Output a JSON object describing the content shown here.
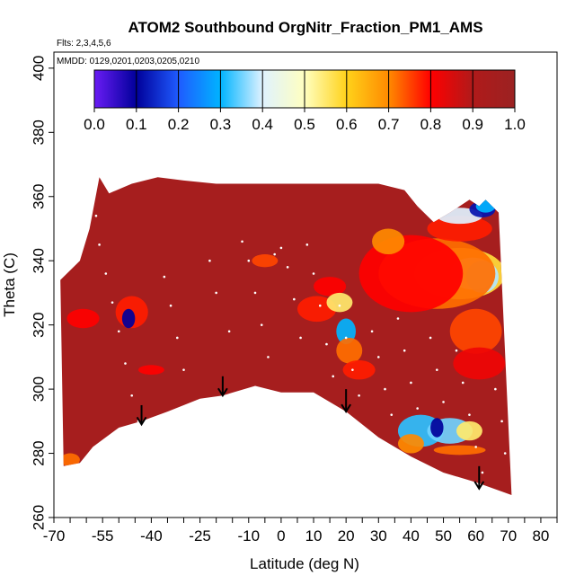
{
  "chart_data": {
    "type": "heatmap",
    "title": "ATOM2 Southbound OrgNitr_Fraction_PM1_AMS",
    "flights_label": "Flts: 2,3,4,5,6",
    "dates_label": "MMDD: 0129,0201,0203,0205,0210",
    "xlabel": "Latitude (deg N)",
    "ylabel": "Theta (C)",
    "xlim": [
      -70,
      85
    ],
    "ylim": [
      260,
      405
    ],
    "x_ticks": [
      {
        "value": -70,
        "label": "-70"
      },
      {
        "value": -55,
        "label": "-55"
      },
      {
        "value": -40,
        "label": "-40"
      },
      {
        "value": -25,
        "label": "-25"
      },
      {
        "value": -10,
        "label": "-10"
      },
      {
        "value": 0,
        "label": "0"
      },
      {
        "value": 10,
        "label": "10"
      },
      {
        "value": 20,
        "label": "20"
      },
      {
        "value": 30,
        "label": "30"
      },
      {
        "value": 40,
        "label": "40"
      },
      {
        "value": 50,
        "label": "50"
      },
      {
        "value": 60,
        "label": "60"
      },
      {
        "value": 70,
        "label": "70"
      },
      {
        "value": 80,
        "label": "80"
      }
    ],
    "y_ticks": [
      {
        "value": 260,
        "label": "260"
      },
      {
        "value": 280,
        "label": "280"
      },
      {
        "value": 300,
        "label": "300"
      },
      {
        "value": 320,
        "label": "320"
      },
      {
        "value": 340,
        "label": "340"
      },
      {
        "value": 360,
        "label": "360"
      },
      {
        "value": 380,
        "label": "380"
      },
      {
        "value": 400,
        "label": "400"
      }
    ],
    "colorbar": {
      "range": [
        0.0,
        1.0
      ],
      "ticks": [
        "0.0",
        "0.1",
        "0.2",
        "0.3",
        "0.4",
        "0.5",
        "0.6",
        "0.7",
        "0.8",
        "0.9",
        "1.0"
      ],
      "stops": [
        "#6a1cf5",
        "#00009a",
        "#1f5bff",
        "#00b4ff",
        "#dff2ff",
        "#ffffc0",
        "#ffd21a",
        "#ff8a00",
        "#ff0000",
        "#b01a1a",
        "#9b2222"
      ]
    },
    "background_value": 0.95,
    "domain_top": [
      {
        "lat": -68,
        "theta": 334
      },
      {
        "lat": -62,
        "theta": 340
      },
      {
        "lat": -59,
        "theta": 350
      },
      {
        "lat": -56,
        "theta": 366
      },
      {
        "lat": -53,
        "theta": 361
      },
      {
        "lat": -46,
        "theta": 364
      },
      {
        "lat": -38,
        "theta": 366
      },
      {
        "lat": -30,
        "theta": 365
      },
      {
        "lat": -20,
        "theta": 364
      },
      {
        "lat": -5,
        "theta": 364
      },
      {
        "lat": 15,
        "theta": 364
      },
      {
        "lat": 30,
        "theta": 364
      },
      {
        "lat": 38,
        "theta": 362
      },
      {
        "lat": 42,
        "theta": 357
      },
      {
        "lat": 47,
        "theta": 352
      },
      {
        "lat": 52,
        "theta": 355
      },
      {
        "lat": 58,
        "theta": 359
      },
      {
        "lat": 61,
        "theta": 357
      },
      {
        "lat": 63,
        "theta": 359
      },
      {
        "lat": 65,
        "theta": 357
      },
      {
        "lat": 67,
        "theta": 355
      }
    ],
    "domain_bottom": [
      {
        "lat": -67,
        "theta": 276
      },
      {
        "lat": -62,
        "theta": 277
      },
      {
        "lat": -58,
        "theta": 282
      },
      {
        "lat": -50,
        "theta": 288
      },
      {
        "lat": -43,
        "theta": 290
      },
      {
        "lat": -35,
        "theta": 293
      },
      {
        "lat": -25,
        "theta": 297
      },
      {
        "lat": -18,
        "theta": 298
      },
      {
        "lat": -8,
        "theta": 301
      },
      {
        "lat": 0,
        "theta": 299
      },
      {
        "lat": 10,
        "theta": 299
      },
      {
        "lat": 20,
        "theta": 293
      },
      {
        "lat": 30,
        "theta": 285
      },
      {
        "lat": 40,
        "theta": 279
      },
      {
        "lat": 50,
        "theta": 274
      },
      {
        "lat": 60,
        "theta": 271
      },
      {
        "lat": 71,
        "theta": 267
      }
    ],
    "patches": [
      {
        "lat": 55,
        "theta": 336,
        "rlat": 14,
        "rtheta": 8,
        "value": 0.58
      },
      {
        "lat": 59,
        "theta": 336,
        "rlat": 7,
        "rtheta": 5,
        "value": 0.46
      },
      {
        "lat": 62,
        "theta": 335,
        "rlat": 5,
        "rtheta": 5,
        "value": 0.38
      },
      {
        "lat": 48,
        "theta": 336,
        "rlat": 18,
        "rtheta": 11,
        "value": 0.72
      },
      {
        "lat": 40,
        "theta": 336,
        "rlat": 16,
        "rtheta": 12,
        "value": 0.8
      },
      {
        "lat": 60,
        "theta": 318,
        "rlat": 8,
        "rtheta": 7,
        "value": 0.75
      },
      {
        "lat": 61,
        "theta": 308,
        "rlat": 8,
        "rtheta": 5,
        "value": 0.82
      },
      {
        "lat": 55,
        "theta": 350,
        "rlat": 10,
        "rtheta": 4,
        "value": 0.78
      },
      {
        "lat": 55,
        "theta": 354,
        "rlat": 7,
        "rtheta": 2.5,
        "value": 0.4
      },
      {
        "lat": 62,
        "theta": 356,
        "rlat": 4,
        "rtheta": 2.5,
        "value": 0.12
      },
      {
        "lat": 43,
        "theta": 287,
        "rlat": 7,
        "rtheta": 5,
        "value": 0.32
      },
      {
        "lat": 52,
        "theta": 287,
        "rlat": 7,
        "rtheta": 4,
        "value": 0.35
      },
      {
        "lat": 58,
        "theta": 287,
        "rlat": 4,
        "rtheta": 3,
        "value": 0.55
      },
      {
        "lat": 48,
        "theta": 288,
        "rlat": 2,
        "rtheta": 3,
        "value": 0.1
      },
      {
        "lat": 55,
        "theta": 281,
        "rlat": 8,
        "rtheta": 1.5,
        "value": 0.72
      },
      {
        "lat": 40,
        "theta": 283,
        "rlat": 4,
        "rtheta": 3,
        "value": 0.7
      },
      {
        "lat": 20,
        "theta": 318,
        "rlat": 3,
        "rtheta": 4,
        "value": 0.3
      },
      {
        "lat": 21,
        "theta": 312,
        "rlat": 4,
        "rtheta": 4,
        "value": 0.72
      },
      {
        "lat": 24,
        "theta": 306,
        "rlat": 5,
        "rtheta": 3,
        "value": 0.78
      },
      {
        "lat": 15,
        "theta": 332,
        "rlat": 5,
        "rtheta": 3,
        "value": 0.8
      },
      {
        "lat": 11,
        "theta": 325,
        "rlat": 6,
        "rtheta": 4,
        "value": 0.78
      },
      {
        "lat": -5,
        "theta": 340,
        "rlat": 4,
        "rtheta": 2,
        "value": 0.75
      },
      {
        "lat": -46,
        "theta": 324,
        "rlat": 5,
        "rtheta": 5,
        "value": 0.78
      },
      {
        "lat": -61,
        "theta": 322,
        "rlat": 5,
        "rtheta": 3,
        "value": 0.8
      },
      {
        "lat": -47,
        "theta": 322,
        "rlat": 2,
        "rtheta": 3,
        "value": 0.1
      },
      {
        "lat": -40,
        "theta": 306,
        "rlat": 4,
        "rtheta": 1.5,
        "value": 0.8
      },
      {
        "lat": -65,
        "theta": 278,
        "rlat": 3,
        "rtheta": 2,
        "value": 0.72
      },
      {
        "lat": 63,
        "theta": 357,
        "rlat": 3,
        "rtheta": 2,
        "value": 0.3
      },
      {
        "lat": 33,
        "theta": 346,
        "rlat": 5,
        "rtheta": 4,
        "value": 0.7
      },
      {
        "lat": 18,
        "theta": 327,
        "rlat": 4,
        "rtheta": 3,
        "value": 0.55
      }
    ],
    "trace_points": [
      {
        "lat": -58,
        "theta": 362
      },
      {
        "lat": -57,
        "theta": 354
      },
      {
        "lat": -56,
        "theta": 345
      },
      {
        "lat": -54,
        "theta": 336
      },
      {
        "lat": -52,
        "theta": 327
      },
      {
        "lat": -50,
        "theta": 318
      },
      {
        "lat": -48,
        "theta": 308
      },
      {
        "lat": -46,
        "theta": 298
      },
      {
        "lat": -44,
        "theta": 290
      },
      {
        "lat": -36,
        "theta": 335
      },
      {
        "lat": -34,
        "theta": 326
      },
      {
        "lat": -32,
        "theta": 316
      },
      {
        "lat": -30,
        "theta": 306
      },
      {
        "lat": -22,
        "theta": 340
      },
      {
        "lat": -20,
        "theta": 330
      },
      {
        "lat": -16,
        "theta": 318
      },
      {
        "lat": -12,
        "theta": 346
      },
      {
        "lat": -10,
        "theta": 340
      },
      {
        "lat": -8,
        "theta": 330
      },
      {
        "lat": -6,
        "theta": 320
      },
      {
        "lat": -4,
        "theta": 310
      },
      {
        "lat": -2,
        "theta": 342
      },
      {
        "lat": 0,
        "theta": 344
      },
      {
        "lat": 2,
        "theta": 338
      },
      {
        "lat": 4,
        "theta": 328
      },
      {
        "lat": 6,
        "theta": 316
      },
      {
        "lat": 8,
        "theta": 345
      },
      {
        "lat": 10,
        "theta": 336
      },
      {
        "lat": 12,
        "theta": 326
      },
      {
        "lat": 14,
        "theta": 314
      },
      {
        "lat": 16,
        "theta": 304
      },
      {
        "lat": 18,
        "theta": 326
      },
      {
        "lat": 20,
        "theta": 316
      },
      {
        "lat": 22,
        "theta": 306
      },
      {
        "lat": 24,
        "theta": 298
      },
      {
        "lat": 28,
        "theta": 318
      },
      {
        "lat": 30,
        "theta": 310
      },
      {
        "lat": 32,
        "theta": 300
      },
      {
        "lat": 34,
        "theta": 292
      },
      {
        "lat": 36,
        "theta": 322
      },
      {
        "lat": 38,
        "theta": 312
      },
      {
        "lat": 40,
        "theta": 302
      },
      {
        "lat": 42,
        "theta": 294
      },
      {
        "lat": 46,
        "theta": 316
      },
      {
        "lat": 48,
        "theta": 306
      },
      {
        "lat": 50,
        "theta": 296
      },
      {
        "lat": 54,
        "theta": 312
      },
      {
        "lat": 56,
        "theta": 302
      },
      {
        "lat": 58,
        "theta": 292
      },
      {
        "lat": 60,
        "theta": 282
      },
      {
        "lat": 62,
        "theta": 274
      },
      {
        "lat": 66,
        "theta": 300
      },
      {
        "lat": 68,
        "theta": 290
      },
      {
        "lat": 69,
        "theta": 280
      }
    ],
    "arrows": [
      {
        "lat": -43,
        "theta_top": 295,
        "theta_tip": 289
      },
      {
        "lat": -18,
        "theta_top": 304,
        "theta_tip": 298
      },
      {
        "lat": 20,
        "theta_top": 300,
        "theta_tip": 293
      },
      {
        "lat": 61,
        "theta_top": 276,
        "theta_tip": 269
      }
    ]
  }
}
